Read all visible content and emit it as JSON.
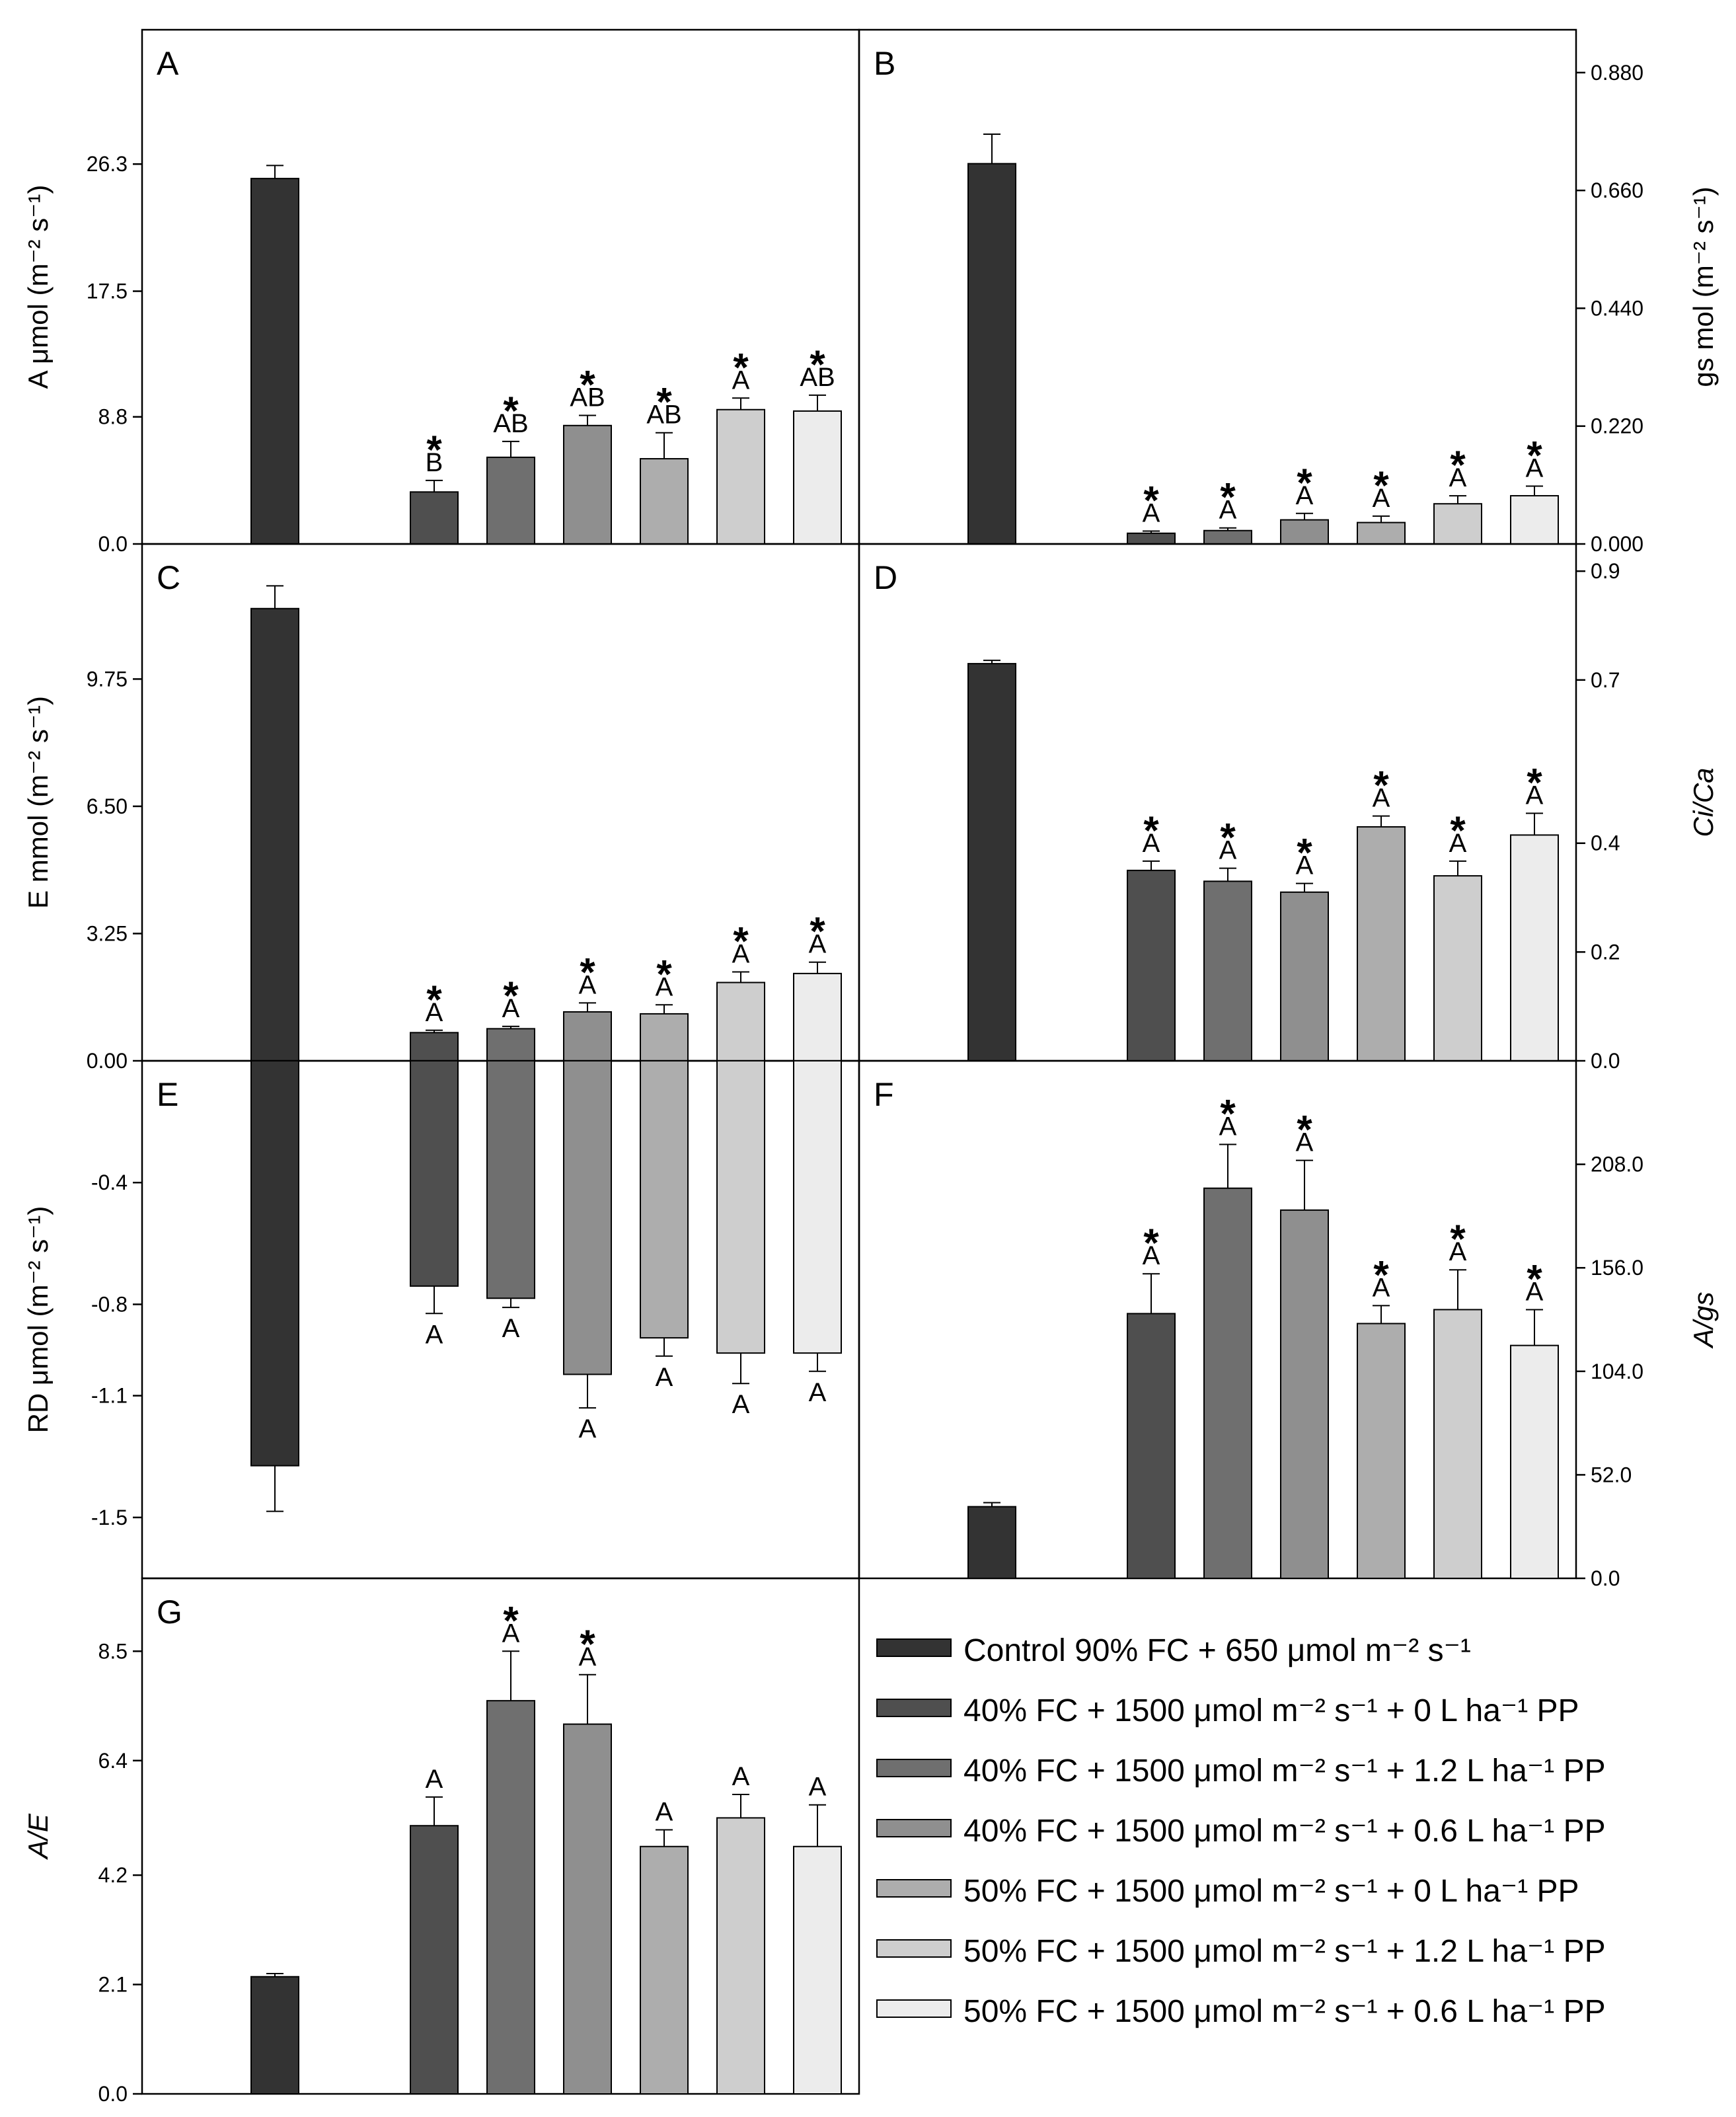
{
  "colors": [
    "#333333",
    "#4f4f4f",
    "#6f6f6f",
    "#8f8f8f",
    "#adadad",
    "#cecece",
    "#ececec"
  ],
  "legend": [
    "Control 90% FC + 650 μmol m⁻² s⁻¹",
    "40% FC + 1500 μmol m⁻² s⁻¹ + 0 L ha⁻¹ PP",
    "40% FC + 1500 μmol m⁻² s⁻¹ + 1.2 L ha⁻¹ PP",
    "40% FC + 1500 μmol m⁻² s⁻¹ + 0.6 L ha⁻¹ PP",
    "50% FC + 1500 μmol m⁻² s⁻¹ + 0 L ha⁻¹ PP",
    "50% FC + 1500 μmol m⁻² s⁻¹ + 1.2 L ha⁻¹ PP",
    "50% FC + 1500 μmol m⁻² s⁻¹ + 0.6 L ha⁻¹ PP"
  ],
  "chart_data": [
    {
      "id": "A",
      "panel_label": "A",
      "type": "bar",
      "ylabel": "A μmol (m⁻² s⁻¹)",
      "axis_side": "left",
      "ylim": [
        0,
        35.6
      ],
      "ticks": [
        "0.0",
        "8.8",
        "17.5",
        "26.3"
      ],
      "tick_values": [
        0,
        8.8,
        17.5,
        26.3
      ],
      "values": [
        25.3,
        3.6,
        6.0,
        8.2,
        5.9,
        9.3,
        9.2
      ],
      "errors": [
        0.9,
        0.8,
        1.1,
        0.7,
        1.8,
        0.8,
        1.1
      ],
      "letters": [
        "",
        "B",
        "AB",
        "AB",
        "AB",
        "A",
        "AB"
      ],
      "stars": [
        false,
        true,
        true,
        true,
        true,
        true,
        true
      ]
    },
    {
      "id": "B",
      "panel_label": "B",
      "type": "bar",
      "ylabel": "gs mol (m⁻² s⁻¹)",
      "axis_side": "right",
      "ylim": [
        0,
        0.96
      ],
      "ticks": [
        "0.000",
        "0.220",
        "0.440",
        "0.660",
        "0.880"
      ],
      "tick_values": [
        0,
        0.22,
        0.44,
        0.66,
        0.88
      ],
      "values": [
        0.71,
        0.02,
        0.025,
        0.045,
        0.04,
        0.075,
        0.09
      ],
      "errors": [
        0.055,
        0.004,
        0.005,
        0.012,
        0.012,
        0.015,
        0.018
      ],
      "letters": [
        "",
        "A",
        "A",
        "A",
        "A",
        "A",
        "A"
      ],
      "stars": [
        false,
        true,
        true,
        true,
        true,
        true,
        true
      ]
    },
    {
      "id": "C",
      "panel_label": "C",
      "type": "bar",
      "ylabel": "E mmol (m⁻² s⁻¹)",
      "axis_side": "left",
      "ylim": [
        0,
        13.2
      ],
      "ticks": [
        "0.00",
        "3.25",
        "6.50",
        "9.75"
      ],
      "tick_values": [
        0,
        3.25,
        6.5,
        9.75
      ],
      "values": [
        11.55,
        0.72,
        0.82,
        1.25,
        1.2,
        2.0,
        2.23
      ],
      "errors": [
        0.58,
        0.06,
        0.06,
        0.23,
        0.23,
        0.27,
        0.29
      ],
      "letters": [
        "",
        "A",
        "A",
        "A",
        "A",
        "A",
        "A"
      ],
      "stars": [
        false,
        true,
        true,
        true,
        true,
        true,
        true
      ]
    },
    {
      "id": "D",
      "panel_label": "D",
      "type": "bar",
      "ylabel": "Ci/Ca",
      "axis_side": "right",
      "ylim": [
        0,
        0.95
      ],
      "ticks": [
        "0.0",
        "0.2",
        "0.4",
        "0.7",
        "0.9"
      ],
      "tick_values": [
        0,
        0.2,
        0.4,
        0.7,
        0.9
      ],
      "values": [
        0.73,
        0.35,
        0.33,
        0.31,
        0.43,
        0.34,
        0.415
      ],
      "errors": [
        0.006,
        0.017,
        0.024,
        0.016,
        0.02,
        0.027,
        0.04
      ],
      "letters": [
        "",
        "A",
        "A",
        "A",
        "A",
        "A",
        "A"
      ],
      "stars": [
        false,
        true,
        true,
        true,
        true,
        true,
        true
      ]
    },
    {
      "id": "E",
      "panel_label": "E",
      "type": "bar",
      "ylabel": "RD μmol (m⁻² s⁻¹)",
      "axis_side": "left",
      "ylim": [
        -1.7,
        0
      ],
      "ticks": [
        "-1.5",
        "-1.1",
        "-0.8",
        "-0.4"
      ],
      "tick_values": [
        -1.5,
        -1.1,
        -0.8,
        -0.4
      ],
      "values": [
        -1.33,
        -0.74,
        -0.78,
        -1.03,
        -0.91,
        -0.96,
        -0.96
      ],
      "errors": [
        0.15,
        0.09,
        0.03,
        0.11,
        0.06,
        0.1,
        0.06
      ],
      "letters": [
        "",
        "A",
        "A",
        "A",
        "A",
        "A",
        "A"
      ],
      "stars": [
        false,
        false,
        false,
        false,
        false,
        false,
        false
      ]
    },
    {
      "id": "F",
      "panel_label": "F",
      "type": "bar",
      "ylabel": "A/gs",
      "axis_side": "right",
      "ylim": [
        0,
        260
      ],
      "ticks": [
        "0.0",
        "52.0",
        "104.0",
        "156.0",
        "208.0"
      ],
      "tick_values": [
        0,
        52,
        104,
        156,
        208
      ],
      "values": [
        36,
        133,
        196,
        185,
        128,
        135,
        117
      ],
      "errors": [
        2,
        20,
        22,
        25,
        9,
        20,
        18
      ],
      "letters": [
        "",
        "A",
        "A",
        "A",
        "A",
        "A",
        "A"
      ],
      "stars": [
        false,
        true,
        true,
        true,
        true,
        true,
        true
      ]
    },
    {
      "id": "G",
      "panel_label": "G",
      "type": "bar",
      "ylabel": "A/E",
      "axis_side": "left",
      "ylim": [
        0,
        9.9
      ],
      "ticks": [
        "0.0",
        "2.1",
        "4.2",
        "6.4",
        "8.5"
      ],
      "tick_values": [
        0,
        2.1,
        4.2,
        6.4,
        8.5
      ],
      "values": [
        2.25,
        5.15,
        7.55,
        7.1,
        4.75,
        5.3,
        4.75
      ],
      "errors": [
        0.06,
        0.55,
        0.95,
        0.95,
        0.32,
        0.45,
        0.8
      ],
      "letters": [
        "",
        "A",
        "A",
        "A",
        "A",
        "A",
        "A"
      ],
      "stars": [
        false,
        false,
        true,
        true,
        false,
        false,
        false
      ]
    }
  ]
}
